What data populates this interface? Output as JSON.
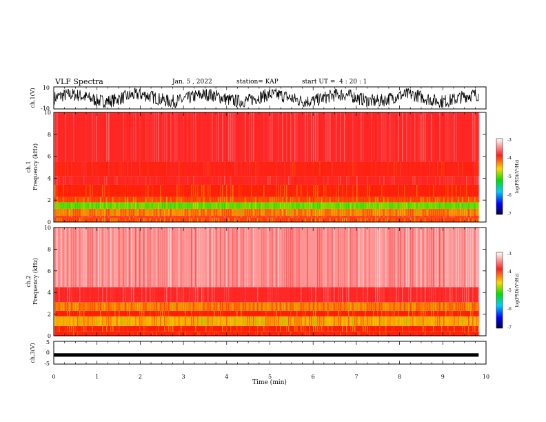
{
  "header": {
    "title": "VLF Spectra",
    "date": "Jan. 5 , 2022",
    "station": "station= KAP",
    "start": "start UT =  4 : 20 : 1"
  },
  "chart_data": [
    {
      "type": "line",
      "panel": "ch1-waveform",
      "ylabel": "ch.1(V)",
      "ylim": [
        -10,
        10
      ],
      "y_ticks": [
        "10",
        "-10"
      ],
      "x_range_min": [
        0,
        10
      ],
      "data_extent_min": 9.83,
      "description_level": "noisy waveform mostly between -8 and 8 V"
    },
    {
      "type": "heatmap",
      "panel": "ch1-spectrogram",
      "ylabel": "ch.1\nFrequency (kHz)",
      "ylim_khz": [
        0,
        10
      ],
      "y_ticks": [
        "0",
        "2",
        "4",
        "6",
        "8",
        "10"
      ],
      "x_range_min": [
        0,
        10
      ],
      "data_extent_min": 9.83,
      "bands_khz": [
        {
          "from": 0.0,
          "to": 0.4,
          "level": -4.3
        },
        {
          "from": 0.4,
          "to": 0.55,
          "level": -3.6
        },
        {
          "from": 0.55,
          "to": 1.2,
          "level": -4.4
        },
        {
          "from": 1.2,
          "to": 1.8,
          "level": -4.9
        },
        {
          "from": 1.8,
          "to": 2.3,
          "level": -4.3
        },
        {
          "from": 2.3,
          "to": 3.4,
          "level": -4.1
        },
        {
          "from": 3.4,
          "to": 4.2,
          "level": -3.7
        },
        {
          "from": 4.2,
          "to": 5.5,
          "level": -3.9
        },
        {
          "from": 5.5,
          "to": 10.0,
          "level": -3.6
        }
      ]
    },
    {
      "type": "heatmap",
      "panel": "ch2-spectrogram",
      "ylabel": "ch.2\nFrequency (kHz)",
      "ylim_khz": [
        0,
        10
      ],
      "y_ticks": [
        "0",
        "2",
        "4",
        "6",
        "8",
        "10"
      ],
      "x_range_min": [
        0,
        10
      ],
      "data_extent_min": 9.83,
      "bands_khz": [
        {
          "from": 0.0,
          "to": 0.4,
          "level": -4.0
        },
        {
          "from": 0.4,
          "to": 0.9,
          "level": -4.2
        },
        {
          "from": 0.9,
          "to": 1.8,
          "level": -4.5
        },
        {
          "from": 1.8,
          "to": 2.3,
          "level": -4.2
        },
        {
          "from": 2.3,
          "to": 3.1,
          "level": -4.4
        },
        {
          "from": 3.1,
          "to": 4.5,
          "level": -3.6
        },
        {
          "from": 4.5,
          "to": 10.0,
          "level": -3.2
        }
      ]
    },
    {
      "type": "line",
      "panel": "ch3-waveform",
      "ylabel": "ch.3(V)",
      "ylim": [
        -5,
        5
      ],
      "y_ticks": [
        "5",
        "0",
        "-5"
      ],
      "x_range_min": [
        0,
        10
      ],
      "data_extent_min": 9.83,
      "level_v": -1.0,
      "xlabel": "Time (min)",
      "x_ticks": [
        "0",
        "1",
        "2",
        "3",
        "4",
        "5",
        "6",
        "7",
        "8",
        "9",
        "10"
      ]
    }
  ],
  "colorbar": {
    "label": "log(PSD)(V²/Hz)",
    "range": [
      -7,
      -3
    ],
    "ticks": [
      "-3",
      "-4",
      "-5",
      "-6",
      "-7"
    ],
    "colors": [
      "#ffffff",
      "#ff0000",
      "#ffd700",
      "#00dd00",
      "#00ccff",
      "#0000ff",
      "#000040"
    ]
  }
}
